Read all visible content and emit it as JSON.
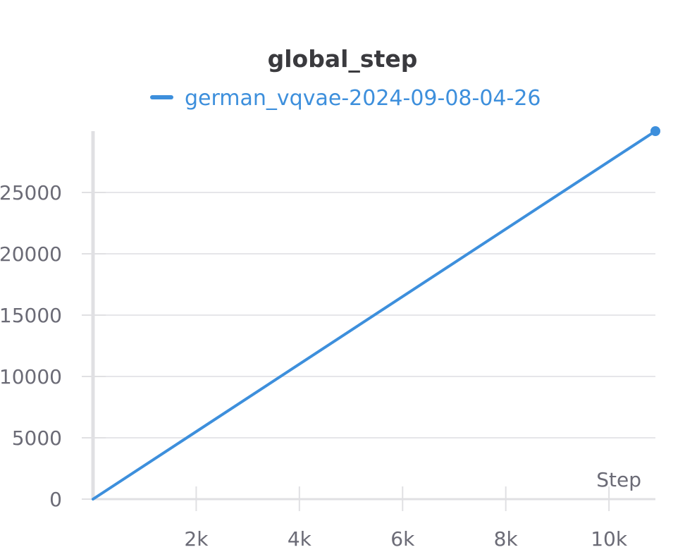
{
  "chart_data": {
    "type": "line",
    "title": "global_step",
    "xlabel": "Step",
    "ylabel": "",
    "xlim": [
      0,
      10900
    ],
    "ylim": [
      0,
      30000
    ],
    "xticks": [
      2000,
      4000,
      6000,
      8000,
      10000
    ],
    "xtick_labels": [
      "2k",
      "4k",
      "6k",
      "8k",
      "10k"
    ],
    "yticks": [
      0,
      5000,
      10000,
      15000,
      20000,
      25000
    ],
    "ytick_labels": [
      "0",
      "5000",
      "10000",
      "15000",
      "20000",
      "25000"
    ],
    "grid": true,
    "legend_position": "top-center",
    "series": [
      {
        "name": "german_vqvae-2024-09-08-04-26",
        "color": "#3d8fdc",
        "x": [
          0,
          10900
        ],
        "y": [
          0,
          30000
        ],
        "marker_last": true
      }
    ]
  }
}
